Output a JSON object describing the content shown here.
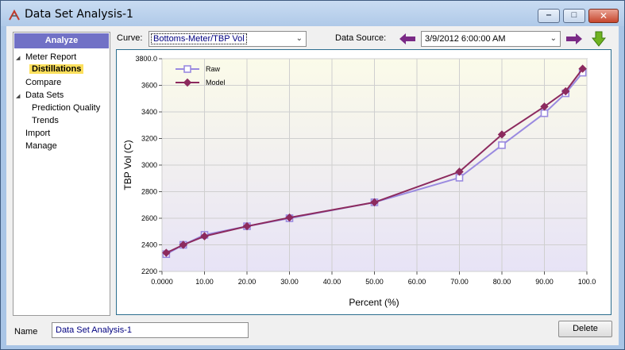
{
  "window": {
    "title": "Data Set Analysis-1",
    "controls": {
      "minimize": "‒",
      "maximize": "□",
      "close": "✕"
    }
  },
  "nav": {
    "header": "Analyze",
    "items": [
      {
        "label": "Meter Report",
        "expanded": true
      },
      {
        "label": "Distillations",
        "selected": true
      },
      {
        "label": "Compare"
      },
      {
        "label": "Data Sets",
        "expanded": true
      },
      {
        "label": "Prediction Quality"
      },
      {
        "label": "Trends"
      },
      {
        "label": "Import"
      },
      {
        "label": "Manage"
      }
    ]
  },
  "toolbar": {
    "curve_label": "Curve:",
    "curve_value": "Bottoms-Meter/TBP Vol",
    "source_label": "Data Source:",
    "source_value": "3/9/2012 6:00:00 AM",
    "prev_icon": "left-arrow-icon",
    "next_icon": "right-arrow-icon",
    "download_icon": "down-arrow-icon",
    "arrow_color": "#7a2a86",
    "download_color": "#6fb220"
  },
  "chart_data": {
    "type": "line",
    "xlabel": "Percent (%)",
    "ylabel": "TBP Vol (C)",
    "xlim": [
      0,
      100
    ],
    "ylim": [
      2200,
      3800
    ],
    "x_ticks": [
      "0.0000",
      "10.00",
      "20.00",
      "30.00",
      "40.00",
      "50.00",
      "60.00",
      "70.00",
      "80.00",
      "90.00",
      "100.0"
    ],
    "y_ticks": [
      "2200",
      "2400",
      "2600",
      "2800",
      "3000",
      "3200",
      "3400",
      "3600",
      "3800.0"
    ],
    "grid": true,
    "legend_position": "top-left",
    "series": [
      {
        "name": "Raw",
        "color": "#9a8ae0",
        "marker": "square",
        "points": [
          [
            1,
            2330
          ],
          [
            5,
            2400
          ],
          [
            10,
            2475
          ],
          [
            20,
            2540
          ],
          [
            30,
            2600
          ],
          [
            50,
            2720
          ],
          [
            70,
            2905
          ],
          [
            80,
            3150
          ],
          [
            90,
            3390
          ],
          [
            95,
            3540
          ],
          [
            99,
            3695
          ]
        ]
      },
      {
        "name": "Model",
        "color": "#8c2a5e",
        "marker": "diamond",
        "points": [
          [
            1,
            2340
          ],
          [
            5,
            2400
          ],
          [
            10,
            2465
          ],
          [
            20,
            2540
          ],
          [
            30,
            2605
          ],
          [
            50,
            2720
          ],
          [
            70,
            2950
          ],
          [
            80,
            3230
          ],
          [
            90,
            3440
          ],
          [
            95,
            3555
          ],
          [
            99,
            3725
          ]
        ]
      }
    ]
  },
  "footer": {
    "name_label": "Name",
    "name_value": "Data Set Analysis-1",
    "delete_label": "Delete"
  }
}
